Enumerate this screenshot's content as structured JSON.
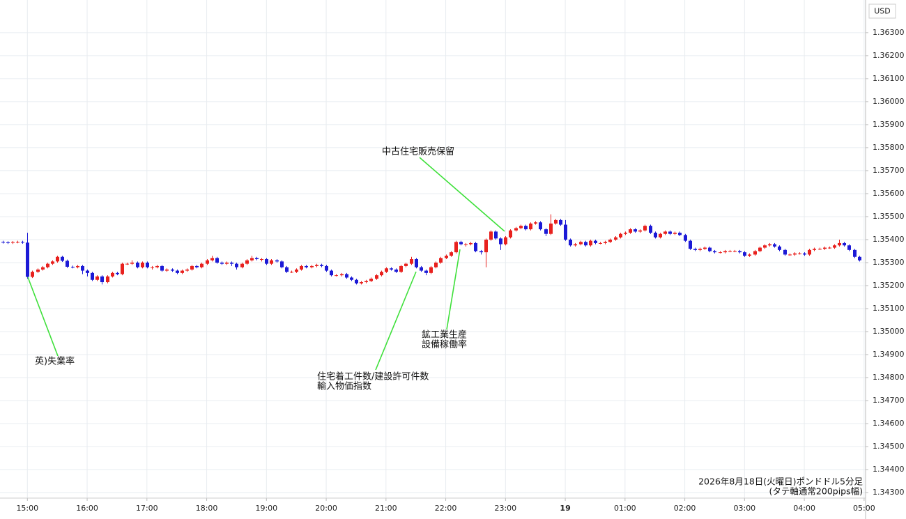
{
  "chart_data": {
    "type": "candlestick",
    "y_axis_label": "USD",
    "note": [
      "2026年8月18日(火曜日)ポンドドル5分足",
      "(タテ軸通常200pips幅)"
    ],
    "annotations": [
      {
        "lines": [
          "英)失業率"
        ]
      },
      {
        "lines": [
          "住宅着工件数/建設許可件数",
          "輸入物価指数"
        ]
      },
      {
        "lines": [
          "鉱工業生産",
          "設備稼働率"
        ]
      },
      {
        "lines": [
          "中古住宅販売保留"
        ]
      }
    ],
    "colors": {
      "up": "#e8211e",
      "down": "#1c1ad6"
    },
    "grid": true,
    "xlim": [
      -0.5,
      173.3
    ],
    "xticks": [
      {
        "value": 5,
        "label": "15:00"
      },
      {
        "value": 17,
        "label": "16:00"
      },
      {
        "value": 29,
        "label": "17:00"
      },
      {
        "value": 41,
        "label": "18:00"
      },
      {
        "value": 53,
        "label": "19:00"
      },
      {
        "value": 65,
        "label": "20:00"
      },
      {
        "value": 77,
        "label": "21:00"
      },
      {
        "value": 89,
        "label": "22:00"
      },
      {
        "value": 101,
        "label": "23:00"
      },
      {
        "value": 113,
        "label": "19"
      },
      {
        "value": 125,
        "label": "01:00"
      },
      {
        "value": 137,
        "label": "02:00"
      },
      {
        "value": 149,
        "label": "03:00"
      },
      {
        "value": 161,
        "label": "04:00"
      },
      {
        "value": 173,
        "label": "05:00"
      }
    ],
    "ylim": [
      1.34276,
      1.36442
    ],
    "yticks": [
      {
        "value": 1.343,
        "label": "1.34300"
      },
      {
        "value": 1.344,
        "label": "1.34400"
      },
      {
        "value": 1.345,
        "label": "1.34500"
      },
      {
        "value": 1.346,
        "label": "1.34600"
      },
      {
        "value": 1.347,
        "label": "1.34700"
      },
      {
        "value": 1.348,
        "label": "1.34800"
      },
      {
        "value": 1.349,
        "label": "1.34900"
      },
      {
        "value": 1.35,
        "label": "1.35000"
      },
      {
        "value": 1.351,
        "label": "1.35100"
      },
      {
        "value": 1.352,
        "label": "1.35200"
      },
      {
        "value": 1.353,
        "label": "1.35300"
      },
      {
        "value": 1.354,
        "label": "1.35400"
      },
      {
        "value": 1.355,
        "label": "1.35500"
      },
      {
        "value": 1.356,
        "label": "1.35600"
      },
      {
        "value": 1.357,
        "label": "1.35700"
      },
      {
        "value": 1.358,
        "label": "1.35800"
      },
      {
        "value": 1.359,
        "label": "1.35900"
      },
      {
        "value": 1.36,
        "label": "1.36000"
      },
      {
        "value": 1.361,
        "label": "1.36100"
      },
      {
        "value": 1.362,
        "label": "1.36200"
      },
      {
        "value": 1.363,
        "label": "1.36300"
      }
    ],
    "open": [
      1.3539,
      1.35388,
      1.35386,
      1.35389,
      1.3539,
      1.35387,
      1.35238,
      1.3526,
      1.3527,
      1.3528,
      1.35295,
      1.35305,
      1.35325,
      1.35308,
      1.35282,
      1.3528,
      1.35285,
      1.35265,
      1.35255,
      1.35225,
      1.3524,
      1.35215,
      1.3524,
      1.35255,
      1.3525,
      1.35295,
      1.35295,
      1.353,
      1.3528,
      1.353,
      1.3528,
      1.3528,
      1.35285,
      1.35265,
      1.3527,
      1.35265,
      1.35255,
      1.35265,
      1.3527,
      1.35285,
      1.3528,
      1.35295,
      1.3531,
      1.3532,
      1.353,
      1.35295,
      1.353,
      1.35295,
      1.3528,
      1.35295,
      1.3531,
      1.3532,
      1.35315,
      1.35315,
      1.35295,
      1.3531,
      1.35305,
      1.3528,
      1.3526,
      1.3526,
      1.3527,
      1.35285,
      1.3528,
      1.35285,
      1.3529,
      1.35285,
      1.35265,
      1.35245,
      1.35245,
      1.3525,
      1.35235,
      1.35225,
      1.3521,
      1.35215,
      1.3522,
      1.3523,
      1.35245,
      1.3526,
      1.35275,
      1.3527,
      1.3526,
      1.35285,
      1.35295,
      1.35315,
      1.3528,
      1.35265,
      1.35255,
      1.3528,
      1.353,
      1.3532,
      1.3533,
      1.35345,
      1.3539,
      1.3538,
      1.3538,
      1.35385,
      1.3535,
      1.35345,
      1.354,
      1.35435,
      1.35405,
      1.3538,
      1.3541,
      1.3544,
      1.3545,
      1.3546,
      1.35445,
      1.3547,
      1.35475,
      1.35445,
      1.35425,
      1.3547,
      1.35485,
      1.35465,
      1.354,
      1.35375,
      1.3538,
      1.3539,
      1.35375,
      1.35395,
      1.35385,
      1.35385,
      1.3539,
      1.354,
      1.3541,
      1.35425,
      1.3543,
      1.35445,
      1.35435,
      1.3544,
      1.3546,
      1.3543,
      1.3541,
      1.35425,
      1.35435,
      1.35425,
      1.3543,
      1.3542,
      1.35395,
      1.3536,
      1.35355,
      1.3536,
      1.35365,
      1.3535,
      1.35345,
      1.35345,
      1.3535,
      1.3535,
      1.3535,
      1.35345,
      1.3533,
      1.35335,
      1.3535,
      1.35365,
      1.35375,
      1.3538,
      1.3537,
      1.35355,
      1.35335,
      1.35335,
      1.3534,
      1.3534,
      1.35335,
      1.35355,
      1.3536,
      1.3536,
      1.35365,
      1.35365,
      1.35375,
      1.35385,
      1.35375,
      1.35355,
      1.35325
    ],
    "high": [
      1.35395,
      1.35393,
      1.35394,
      1.35395,
      1.35395,
      1.3543,
      1.35265,
      1.35275,
      1.35285,
      1.353,
      1.3531,
      1.3533,
      1.3533,
      1.35313,
      1.35287,
      1.3529,
      1.3529,
      1.3527,
      1.3526,
      1.35245,
      1.35245,
      1.35245,
      1.3526,
      1.3526,
      1.353,
      1.353,
      1.3531,
      1.35305,
      1.35305,
      1.35305,
      1.35285,
      1.3529,
      1.3529,
      1.35275,
      1.35275,
      1.3527,
      1.3527,
      1.35275,
      1.3529,
      1.3529,
      1.353,
      1.35315,
      1.3533,
      1.35325,
      1.35305,
      1.35305,
      1.35305,
      1.353,
      1.353,
      1.35315,
      1.3533,
      1.35325,
      1.3532,
      1.3532,
      1.35315,
      1.35315,
      1.3531,
      1.35285,
      1.35265,
      1.35275,
      1.3529,
      1.3529,
      1.3529,
      1.35295,
      1.35295,
      1.3529,
      1.3527,
      1.3525,
      1.35255,
      1.35255,
      1.3524,
      1.3523,
      1.3522,
      1.35225,
      1.35235,
      1.3525,
      1.35265,
      1.3528,
      1.3528,
      1.35275,
      1.3529,
      1.353,
      1.35325,
      1.3532,
      1.35285,
      1.3527,
      1.35285,
      1.35305,
      1.35325,
      1.35335,
      1.3535,
      1.35395,
      1.35395,
      1.35385,
      1.3539,
      1.3539,
      1.35355,
      1.35405,
      1.3544,
      1.3544,
      1.3541,
      1.35415,
      1.35445,
      1.35455,
      1.35465,
      1.35465,
      1.35475,
      1.3548,
      1.3548,
      1.3545,
      1.3551,
      1.3549,
      1.3549,
      1.35485,
      1.35405,
      1.35385,
      1.35395,
      1.35395,
      1.354,
      1.354,
      1.3539,
      1.35395,
      1.35405,
      1.35415,
      1.3543,
      1.35435,
      1.3545,
      1.3545,
      1.35445,
      1.35465,
      1.35465,
      1.35435,
      1.3543,
      1.3544,
      1.3544,
      1.35435,
      1.35435,
      1.35425,
      1.354,
      1.35365,
      1.35365,
      1.3537,
      1.3537,
      1.35355,
      1.3535,
      1.35355,
      1.35355,
      1.35355,
      1.35355,
      1.3535,
      1.3534,
      1.35355,
      1.3537,
      1.3538,
      1.35385,
      1.35385,
      1.35375,
      1.3536,
      1.3534,
      1.35345,
      1.35345,
      1.35345,
      1.3536,
      1.35365,
      1.35365,
      1.3537,
      1.3537,
      1.3538,
      1.354,
      1.3539,
      1.3538,
      1.3536,
      1.3533
    ],
    "low": [
      1.35383,
      1.35381,
      1.35381,
      1.35384,
      1.35382,
      1.3523,
      1.35233,
      1.35255,
      1.35265,
      1.35275,
      1.3529,
      1.353,
      1.35303,
      1.35277,
      1.35275,
      1.35275,
      1.3525,
      1.3524,
      1.3522,
      1.3522,
      1.35205,
      1.3521,
      1.35235,
      1.35245,
      1.35245,
      1.3529,
      1.3529,
      1.35275,
      1.35275,
      1.35275,
      1.3527,
      1.35275,
      1.3526,
      1.3526,
      1.3526,
      1.3525,
      1.3525,
      1.3526,
      1.35265,
      1.35275,
      1.35275,
      1.3529,
      1.35305,
      1.35295,
      1.3529,
      1.3529,
      1.35285,
      1.3527,
      1.35275,
      1.3529,
      1.35305,
      1.3531,
      1.35305,
      1.3529,
      1.3529,
      1.353,
      1.35275,
      1.35255,
      1.35255,
      1.35255,
      1.35265,
      1.35275,
      1.35275,
      1.3528,
      1.3528,
      1.3526,
      1.3524,
      1.3524,
      1.3524,
      1.3523,
      1.3522,
      1.35205,
      1.35205,
      1.3521,
      1.35215,
      1.35225,
      1.3524,
      1.35255,
      1.35265,
      1.35255,
      1.35255,
      1.3528,
      1.3529,
      1.35275,
      1.3526,
      1.35245,
      1.3525,
      1.35275,
      1.35295,
      1.35315,
      1.35325,
      1.3534,
      1.35375,
      1.3537,
      1.35375,
      1.35345,
      1.35335,
      1.3528,
      1.35395,
      1.354,
      1.35355,
      1.35375,
      1.35405,
      1.35435,
      1.35445,
      1.3544,
      1.3544,
      1.35465,
      1.3544,
      1.35415,
      1.3542,
      1.35465,
      1.3546,
      1.35395,
      1.3537,
      1.3537,
      1.35375,
      1.3537,
      1.3537,
      1.3538,
      1.3538,
      1.3538,
      1.35385,
      1.35395,
      1.35405,
      1.3542,
      1.35425,
      1.3543,
      1.3543,
      1.35435,
      1.35425,
      1.35405,
      1.35405,
      1.3542,
      1.3542,
      1.3542,
      1.35415,
      1.3539,
      1.35355,
      1.3535,
      1.3535,
      1.35355,
      1.35345,
      1.3534,
      1.3534,
      1.3534,
      1.35345,
      1.35345,
      1.3534,
      1.35325,
      1.35325,
      1.3533,
      1.35345,
      1.3536,
      1.3537,
      1.35365,
      1.3535,
      1.3533,
      1.3533,
      1.3533,
      1.35335,
      1.3533,
      1.3533,
      1.3535,
      1.35355,
      1.35355,
      1.3536,
      1.3536,
      1.3537,
      1.3537,
      1.3535,
      1.3532,
      1.35305
    ],
    "close": [
      1.35388,
      1.35386,
      1.35389,
      1.3539,
      1.35387,
      1.35238,
      1.3526,
      1.3527,
      1.3528,
      1.35295,
      1.35305,
      1.35325,
      1.35308,
      1.35282,
      1.3528,
      1.35285,
      1.35265,
      1.35255,
      1.35225,
      1.3524,
      1.35215,
      1.3524,
      1.35255,
      1.3525,
      1.35295,
      1.35295,
      1.353,
      1.3528,
      1.353,
      1.3528,
      1.3528,
      1.35285,
      1.35265,
      1.3527,
      1.35265,
      1.35255,
      1.35265,
      1.3527,
      1.35285,
      1.3528,
      1.35295,
      1.3531,
      1.3532,
      1.353,
      1.35295,
      1.353,
      1.35295,
      1.3528,
      1.35295,
      1.3531,
      1.3532,
      1.35315,
      1.35315,
      1.35295,
      1.3531,
      1.35305,
      1.3528,
      1.3526,
      1.3526,
      1.3527,
      1.35285,
      1.3528,
      1.35285,
      1.3529,
      1.35285,
      1.35265,
      1.35245,
      1.35245,
      1.3525,
      1.35235,
      1.35225,
      1.3521,
      1.35215,
      1.3522,
      1.3523,
      1.35245,
      1.3526,
      1.35275,
      1.3527,
      1.3526,
      1.35285,
      1.35295,
      1.35315,
      1.3528,
      1.35265,
      1.35255,
      1.3528,
      1.353,
      1.3532,
      1.3533,
      1.35345,
      1.3539,
      1.3538,
      1.3538,
      1.35385,
      1.3535,
      1.35345,
      1.354,
      1.35435,
      1.35405,
      1.3538,
      1.3541,
      1.3544,
      1.3545,
      1.3546,
      1.35445,
      1.3547,
      1.35475,
      1.35445,
      1.35425,
      1.3547,
      1.35485,
      1.35465,
      1.354,
      1.35375,
      1.3538,
      1.3539,
      1.35375,
      1.35395,
      1.35385,
      1.35385,
      1.3539,
      1.354,
      1.3541,
      1.35425,
      1.3543,
      1.35445,
      1.35435,
      1.3544,
      1.3546,
      1.3543,
      1.3541,
      1.35425,
      1.35435,
      1.35425,
      1.3543,
      1.3542,
      1.35395,
      1.3536,
      1.35355,
      1.3536,
      1.35365,
      1.3535,
      1.35345,
      1.35345,
      1.3535,
      1.3535,
      1.3535,
      1.35345,
      1.3533,
      1.35335,
      1.3535,
      1.35365,
      1.35375,
      1.3538,
      1.3537,
      1.35355,
      1.35335,
      1.35335,
      1.3534,
      1.3534,
      1.35335,
      1.35355,
      1.3536,
      1.3536,
      1.35365,
      1.35365,
      1.35375,
      1.35385,
      1.35375,
      1.35355,
      1.35325,
      1.3531
    ]
  }
}
